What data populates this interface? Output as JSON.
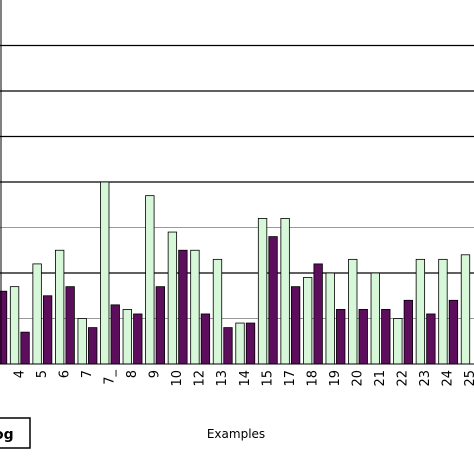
{
  "chart_data": {
    "type": "bar",
    "xlabel": "Examples",
    "legend_fragment": "og",
    "legend_position": "bottom-left",
    "grid": true,
    "ylim": [
      0,
      8
    ],
    "categories": [
      "",
      "4",
      "5",
      "6",
      "7",
      "7_",
      "8",
      "9",
      "10",
      "12",
      "13",
      "14",
      "15",
      "17",
      "18",
      "19",
      "20",
      "21",
      "22",
      "23",
      "24",
      "25"
    ],
    "series": [
      {
        "color": "#d7f7d9",
        "values": [
          null,
          1.7,
          2.2,
          2.5,
          1.0,
          4.0,
          1.2,
          3.7,
          2.9,
          2.5,
          2.3,
          0.9,
          3.2,
          3.2,
          1.9,
          2.0,
          2.3,
          2.0,
          1.0,
          2.3,
          2.3,
          2.4
        ]
      },
      {
        "color": "#5c0d5c",
        "values": [
          1.6,
          0.7,
          1.5,
          1.7,
          0.8,
          1.3,
          1.1,
          1.7,
          2.5,
          1.1,
          0.8,
          0.9,
          2.8,
          1.7,
          2.2,
          1.2,
          1.2,
          1.2,
          1.4,
          1.1,
          1.4,
          null
        ]
      }
    ]
  }
}
